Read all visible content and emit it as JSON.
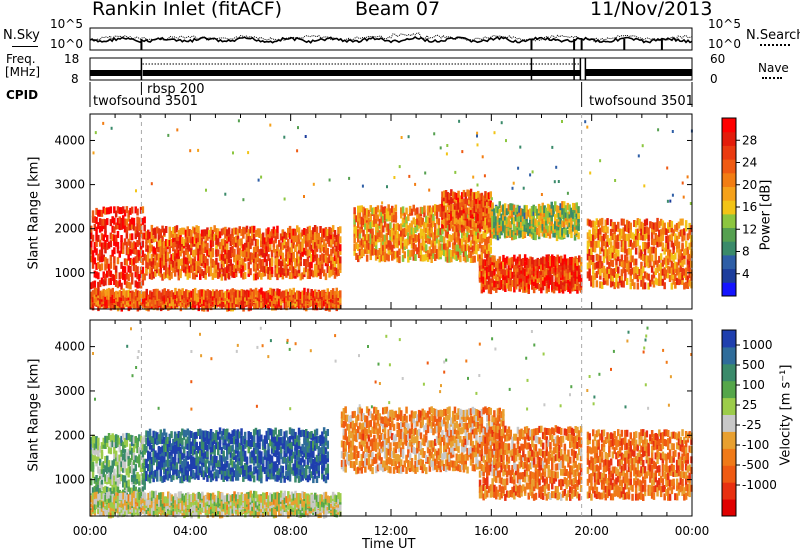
{
  "header": {
    "station": "Rankin Inlet (fitACF)",
    "beam": "Beam 07",
    "date": "11/Nov/2013"
  },
  "noise_panel": {
    "left_label": "N.Sky",
    "right_label": "N.Search",
    "left_ticks": [
      "10^5",
      "10^0"
    ],
    "right_ticks": [
      "10^5",
      "10^0"
    ]
  },
  "freq_panel": {
    "left_label_line1": "Freq.",
    "left_label_line2": "[MHz]",
    "right_label": "Nave",
    "left_ticks": [
      "18",
      "8"
    ],
    "right_ticks": [
      "60",
      "0"
    ]
  },
  "cpid_panel": {
    "label": "CPID",
    "segments": [
      {
        "name": "twofsound",
        "id": "3501",
        "start_hour": 0
      },
      {
        "name": "rbsp",
        "id": "200",
        "start_hour": 2.05
      },
      {
        "name": "twofsound",
        "id": "3501",
        "start_hour": 19.6
      }
    ]
  },
  "x_axis": {
    "label": "Time UT",
    "tick_labels": [
      "00:00",
      "04:00",
      "08:00",
      "12:00",
      "16:00",
      "20:00",
      "00:00"
    ],
    "range_hours": [
      0,
      24
    ]
  },
  "chart_data": [
    {
      "type": "heatmap",
      "name": "power",
      "ylabel": "Slant Range [km]",
      "y_ticks": [
        "1000",
        "2000",
        "3000",
        "4000"
      ],
      "ylim": [
        180,
        4600
      ],
      "colorbar": {
        "label": "Power [dB]",
        "tick_labels": [
          "4",
          "8",
          "12",
          "16",
          "20",
          "24",
          "28"
        ],
        "colors": [
          "#1414ff",
          "#1c3d9c",
          "#2e5ea6",
          "#3a8a6a",
          "#55a050",
          "#8cc63f",
          "#f2c417",
          "#f5a11a",
          "#f27d13",
          "#ef5a12",
          "#ea3a10",
          "#e31c0b",
          "#ff0000"
        ]
      },
      "echo_regions": [
        {
          "t0": 0,
          "t1": 2.2,
          "r0": 700,
          "r1": 2500,
          "level": 28
        },
        {
          "t0": 2.2,
          "t1": 10,
          "r0": 900,
          "r1": 2000,
          "level": 24
        },
        {
          "t0": 0,
          "t1": 10,
          "r0": 200,
          "r1": 500,
          "level": 24
        },
        {
          "t0": 10.5,
          "t1": 16,
          "r0": 1300,
          "r1": 2500,
          "level": 20
        },
        {
          "t0": 14,
          "t1": 16,
          "r0": 2000,
          "r1": 2800,
          "level": 24
        },
        {
          "t0": 15.5,
          "t1": 19.6,
          "r0": 600,
          "r1": 1300,
          "level": 26
        },
        {
          "t0": 16,
          "t1": 19.5,
          "r0": 1800,
          "r1": 2500,
          "level": 14
        },
        {
          "t0": 19.8,
          "t1": 24,
          "r0": 700,
          "r1": 2200,
          "level": 22
        }
      ]
    },
    {
      "type": "heatmap",
      "name": "velocity",
      "ylabel": "Slant Range [km]",
      "y_ticks": [
        "1000",
        "2000",
        "3000",
        "4000"
      ],
      "ylim": [
        180,
        4600
      ],
      "colorbar": {
        "label": "Velocity [m s⁻¹]",
        "tick_labels": [
          "1000",
          "500",
          "100",
          "25",
          "-25",
          "-100",
          "-500",
          "-1000"
        ],
        "colors": [
          "#1f3fae",
          "#2f6c9a",
          "#3a8a6a",
          "#55a64a",
          "#9ccc4a",
          "#c8c8c8",
          "#e8a030",
          "#f07a18",
          "#ef5a12",
          "#e83010",
          "#e00000"
        ]
      },
      "echo_regions": [
        {
          "t0": 0,
          "t1": 2.2,
          "r0": 600,
          "r1": 2000,
          "level": 300
        },
        {
          "t0": 2.2,
          "t1": 9.5,
          "r0": 1000,
          "r1": 2100,
          "level": 800
        },
        {
          "t0": 0,
          "t1": 10,
          "r0": 200,
          "r1": 600,
          "level": 50
        },
        {
          "t0": 10,
          "t1": 16.5,
          "r0": 1200,
          "r1": 2600,
          "level": -300
        },
        {
          "t0": 15.5,
          "t1": 19.6,
          "r0": 600,
          "r1": 2200,
          "level": -400
        },
        {
          "t0": 19.8,
          "t1": 24,
          "r0": 600,
          "r1": 2100,
          "level": -450
        }
      ]
    }
  ]
}
